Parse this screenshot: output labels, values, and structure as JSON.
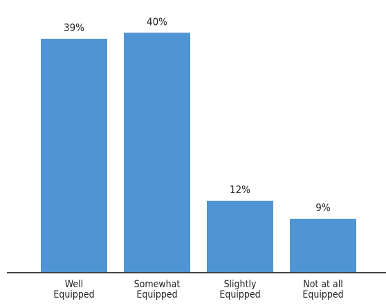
{
  "chart_data": {
    "type": "bar",
    "categories": [
      [
        "Well",
        "Equipped"
      ],
      [
        "Somewhat",
        "Equipped"
      ],
      [
        "Slightly",
        "Equipped"
      ],
      [
        "Not at all",
        "Equipped"
      ]
    ],
    "values": [
      39,
      40,
      12,
      9
    ],
    "value_labels": [
      "39%",
      "40%",
      "12%",
      "9%"
    ],
    "ylim": [
      0,
      45
    ],
    "grid": false,
    "bar_color": "#4f95d3",
    "axis_color": "#444444"
  }
}
